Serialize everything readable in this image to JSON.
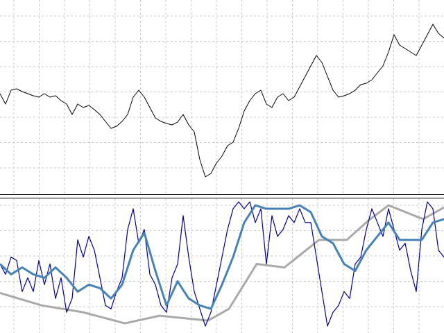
{
  "chart_data": [
    {
      "type": "line",
      "xlim": [
        0,
        640
      ],
      "ylim": [
        0,
        280
      ],
      "grid": true,
      "series": [
        {
          "color": "#000000",
          "width": 1,
          "x": [
            0,
            8,
            16,
            24,
            32,
            40,
            48,
            56,
            64,
            72,
            80,
            88,
            96,
            104,
            112,
            120,
            128,
            136,
            144,
            152,
            160,
            168,
            176,
            184,
            192,
            200,
            208,
            216,
            224,
            232,
            240,
            248,
            256,
            264,
            272,
            280,
            288,
            296,
            304,
            312,
            320,
            328,
            336,
            344,
            352,
            360,
            368,
            376,
            384,
            392,
            400,
            408,
            416,
            424,
            432,
            440,
            448,
            456,
            464,
            472,
            480,
            488,
            496,
            504,
            512,
            520,
            528,
            536,
            544,
            552,
            560,
            568,
            576,
            584,
            592,
            600,
            608,
            616,
            624,
            632,
            640
          ],
          "values": [
            145,
            130,
            150,
            152,
            148,
            145,
            142,
            140,
            145,
            140,
            142,
            135,
            130,
            115,
            130,
            125,
            128,
            122,
            115,
            105,
            95,
            98,
            105,
            115,
            140,
            150,
            140,
            125,
            110,
            105,
            102,
            100,
            104,
            115,
            100,
            90,
            50,
            25,
            30,
            45,
            55,
            70,
            75,
            95,
            120,
            135,
            145,
            150,
            130,
            125,
            140,
            145,
            135,
            140,
            155,
            170,
            185,
            200,
            190,
            170,
            150,
            140,
            142,
            145,
            150,
            158,
            160,
            165,
            175,
            185,
            205,
            230,
            215,
            210,
            205,
            200,
            215,
            230,
            245,
            232,
            225
          ]
        }
      ]
    },
    {
      "type": "line",
      "xlim": [
        0,
        640
      ],
      "ylim": [
        0,
        195
      ],
      "grid": true,
      "series": [
        {
          "color": "#a9a9a9",
          "width": 3,
          "x": [
            0,
            60,
            120,
            180,
            230,
            300,
            330,
            370,
            410,
            460,
            500,
            530,
            560,
            610,
            640
          ],
          "values": [
            58,
            40,
            30,
            14,
            25,
            18,
            35,
            100,
            95,
            135,
            135,
            162,
            185,
            165,
            182
          ]
        },
        {
          "color": "#00008b",
          "width": 1.2,
          "x": [
            0,
            8,
            16,
            24,
            32,
            40,
            48,
            56,
            64,
            72,
            80,
            88,
            96,
            104,
            112,
            120,
            128,
            136,
            144,
            152,
            160,
            168,
            176,
            184,
            192,
            200,
            208,
            216,
            224,
            232,
            240,
            248,
            256,
            264,
            272,
            280,
            288,
            296,
            304,
            312,
            320,
            328,
            336,
            344,
            352,
            360,
            368,
            376,
            384,
            392,
            400,
            408,
            416,
            424,
            432,
            440,
            448,
            456,
            464,
            472,
            480,
            488,
            496,
            504,
            512,
            520,
            528,
            536,
            544,
            552,
            560,
            568,
            576,
            584,
            592,
            600,
            608,
            616,
            624,
            632,
            640
          ],
          "values": [
            100,
            85,
            110,
            105,
            60,
            80,
            60,
            105,
            70,
            100,
            50,
            80,
            30,
            50,
            135,
            110,
            140,
            120,
            80,
            40,
            35,
            60,
            80,
            150,
            180,
            130,
            150,
            85,
            70,
            40,
            30,
            80,
            100,
            170,
            110,
            60,
            35,
            10,
            30,
            70,
            110,
            150,
            180,
            190,
            180,
            190,
            160,
            180,
            100,
            170,
            140,
            150,
            170,
            160,
            180,
            160,
            160,
            110,
            60,
            10,
            30,
            40,
            60,
            50,
            100,
            110,
            150,
            180,
            160,
            140,
            180,
            150,
            120,
            130,
            90,
            60,
            150,
            190,
            180,
            120,
            110
          ]
        },
        {
          "color": "#4682b4",
          "width": 3,
          "x": [
            0,
            16,
            32,
            48,
            64,
            80,
            96,
            112,
            128,
            144,
            160,
            176,
            192,
            208,
            224,
            240,
            256,
            272,
            288,
            304,
            320,
            336,
            352,
            368,
            384,
            400,
            416,
            432,
            448,
            464,
            480,
            496,
            512,
            528,
            544,
            560,
            576,
            592,
            608,
            624,
            640
          ],
          "values": [
            100,
            85,
            95,
            85,
            80,
            95,
            80,
            60,
            70,
            65,
            50,
            70,
            120,
            145,
            90,
            40,
            75,
            50,
            40,
            35,
            70,
            110,
            160,
            185,
            180,
            180,
            180,
            185,
            175,
            140,
            130,
            100,
            90,
            120,
            140,
            160,
            135,
            135,
            135,
            160,
            165
          ]
        }
      ]
    }
  ]
}
